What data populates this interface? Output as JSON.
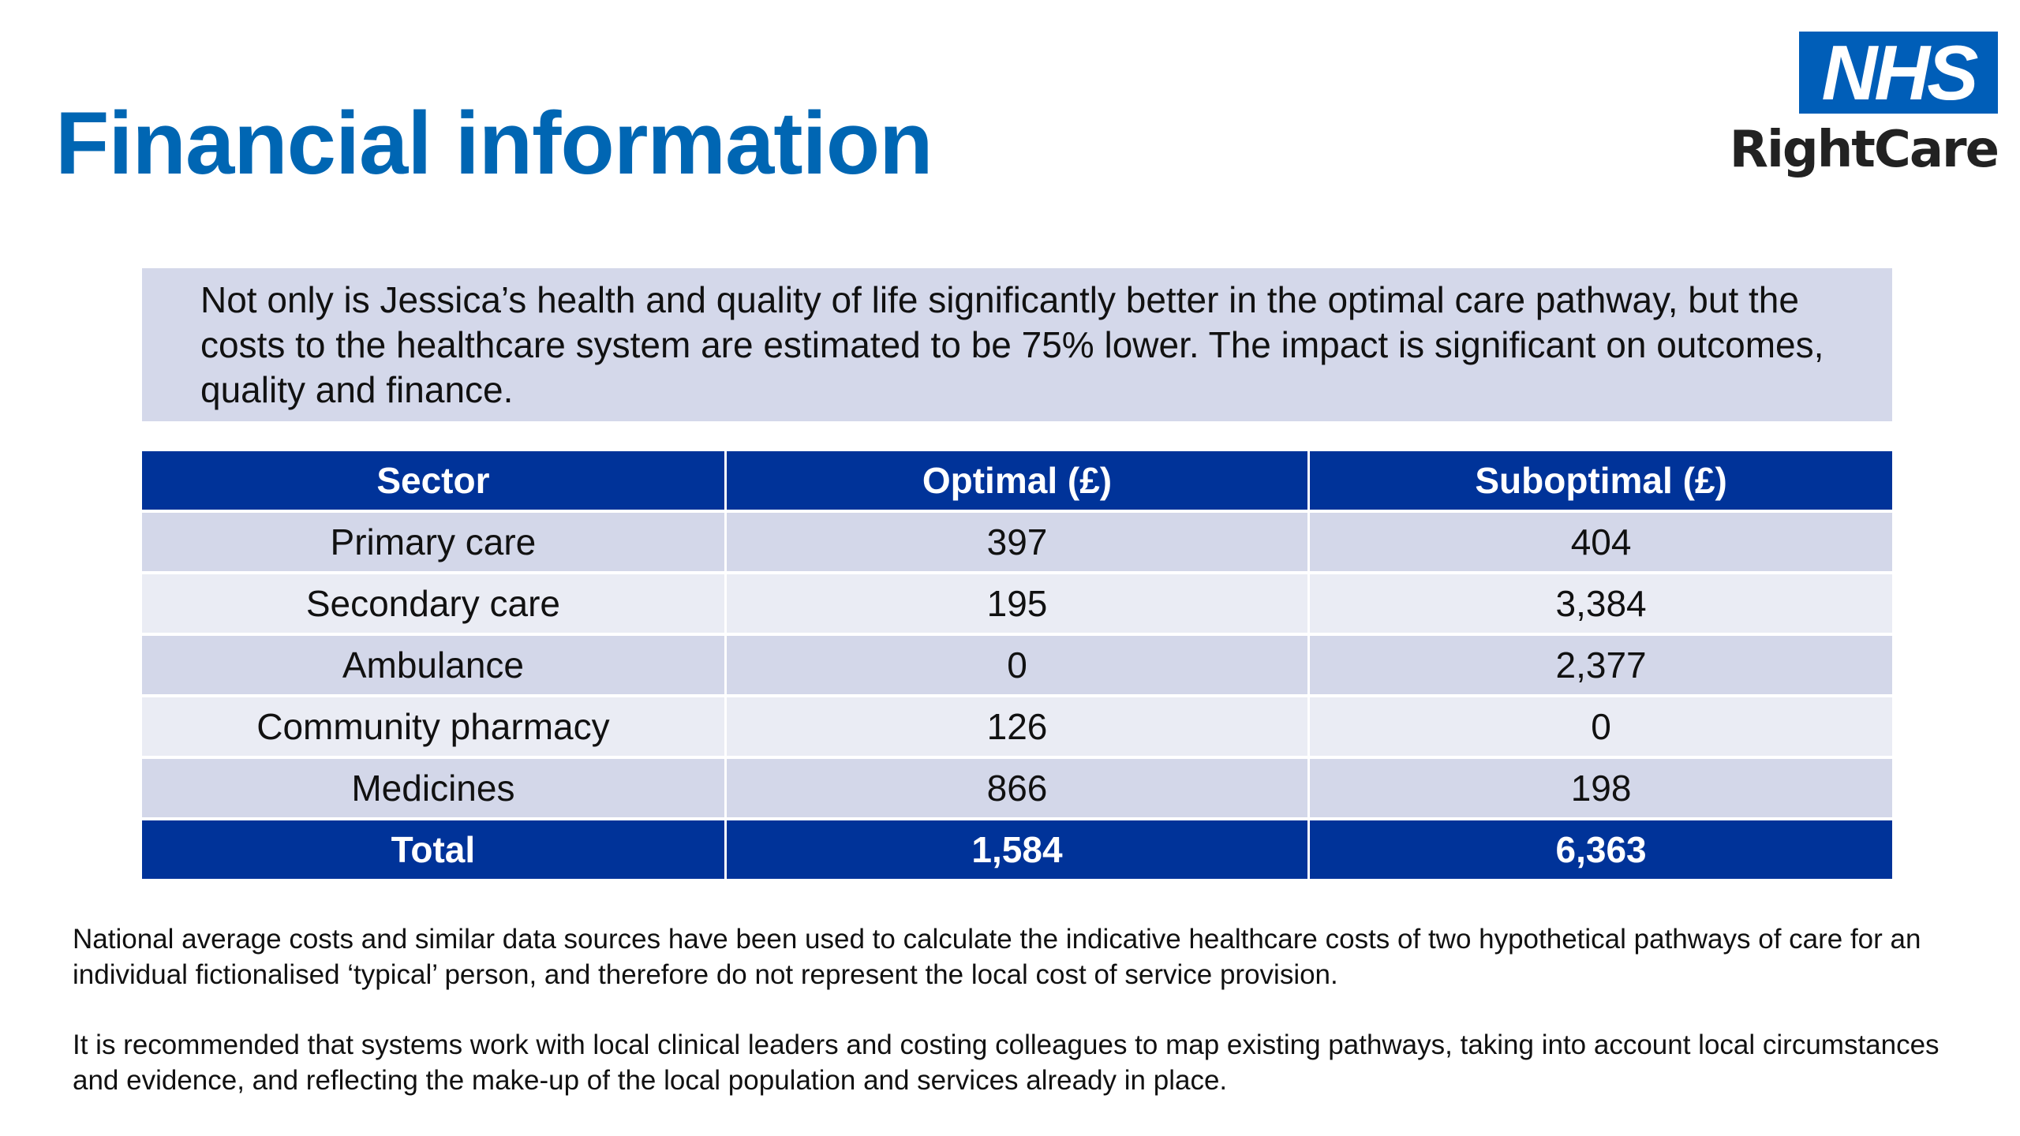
{
  "title": "Financial information",
  "logo": {
    "brand": "NHS",
    "subtitle": "RightCare",
    "brand_color": "#005eb8"
  },
  "summary": "Not only is Jessica’s health and quality of life significantly better in the optimal care pathway, but the costs to the healthcare system are estimated to be 75% lower. The impact is significant on outcomes, quality and finance.",
  "table": {
    "headers": [
      "Sector",
      "Optimal (£)",
      "Suboptimal (£)"
    ],
    "rows": [
      [
        "Primary care",
        "397",
        "404"
      ],
      [
        "Secondary care",
        "195",
        "3,384"
      ],
      [
        "Ambulance",
        "0",
        "2,377"
      ],
      [
        "Community pharmacy",
        "126",
        "0"
      ],
      [
        "Medicines",
        "866",
        "198"
      ]
    ],
    "total": [
      "Total",
      "1,584",
      "6,363"
    ]
  },
  "footnotes": [
    "National average costs and similar data sources have been used to calculate the indicative healthcare costs of two hypothetical pathways of care for an individual fictionalised ‘typical’ person, and therefore do not represent the local cost of service provision.",
    "It is recommended that systems work with local clinical leaders and costing colleagues to map existing pathways, taking into account local circumstances and evidence, and reflecting the make-up of the local population and services already in place."
  ],
  "colors": {
    "title": "#0066b3",
    "table_header": "#003399",
    "row_dark": "#d3d7e9",
    "row_light": "#eaecf4",
    "summary_background": "#d4d8ea"
  }
}
